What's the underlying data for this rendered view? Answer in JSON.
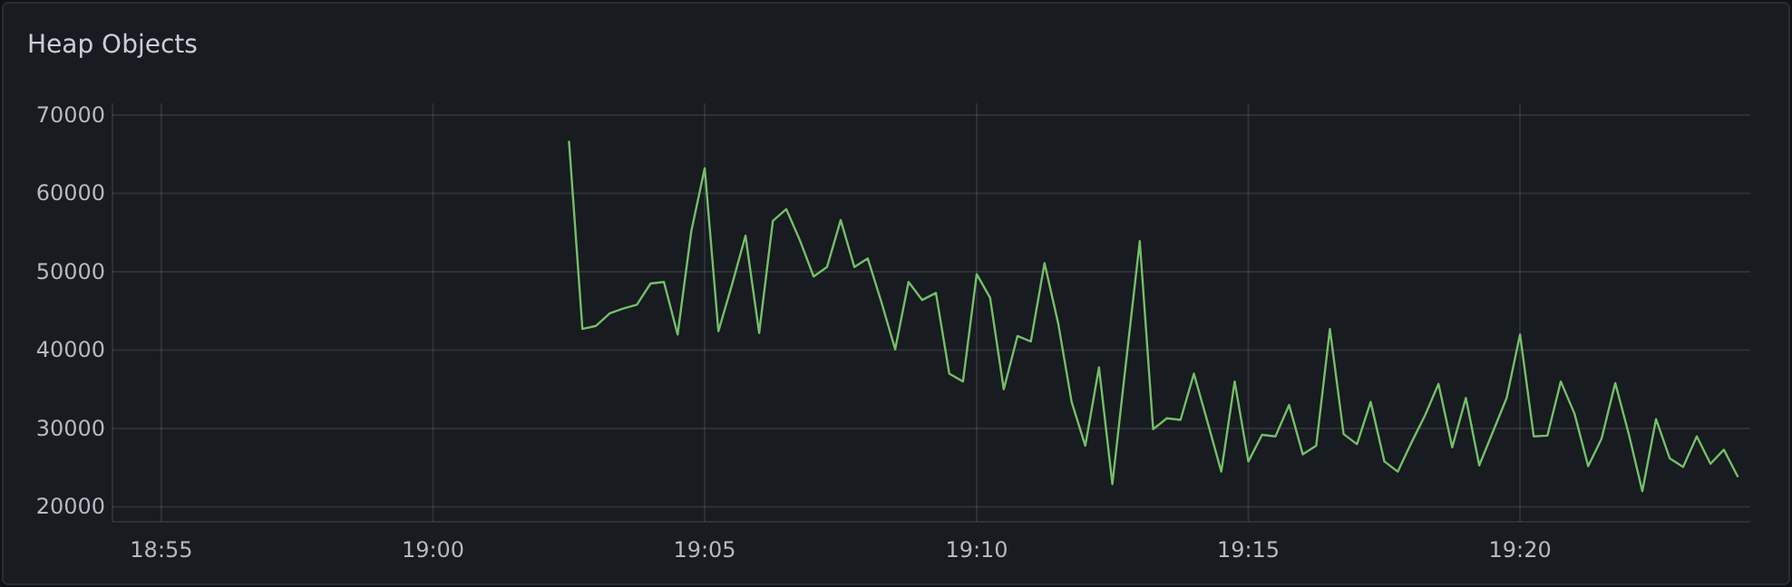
{
  "chart_data": {
    "type": "line",
    "title": "Heap Objects",
    "x": [
      19.0417,
      19.0458,
      19.05,
      19.0542,
      19.0583,
      19.0625,
      19.0667,
      19.0708,
      19.075,
      19.0792,
      19.0833,
      19.0875,
      19.0917,
      19.0958,
      19.1,
      19.1042,
      19.1083,
      19.1125,
      19.1167,
      19.1208,
      19.125,
      19.1292,
      19.1333,
      19.1375,
      19.1417,
      19.1458,
      19.15,
      19.1542,
      19.1583,
      19.1625,
      19.1667,
      19.1708,
      19.175,
      19.1792,
      19.1833,
      19.1875,
      19.1917,
      19.1958,
      19.2,
      19.2042,
      19.2083,
      19.2125,
      19.2167,
      19.2208,
      19.225,
      19.2292,
      19.2333,
      19.2375,
      19.2417,
      19.2458,
      19.25,
      19.2542,
      19.2583,
      19.2625,
      19.2667,
      19.2708,
      19.275,
      19.2792,
      19.2833,
      19.2875,
      19.2917,
      19.2958,
      19.3,
      19.3042,
      19.3083,
      19.3125,
      19.3167,
      19.3208,
      19.325,
      19.3292,
      19.3333,
      19.3375,
      19.3417,
      19.3458,
      19.35,
      19.3542,
      19.3583,
      19.3625,
      19.3667,
      19.3708,
      19.375,
      19.3792,
      19.3833,
      19.3875,
      19.3917,
      19.3958,
      19.4
    ],
    "series": [
      {
        "color": "#73bf69",
        "values": [
          66600,
          42700,
          43100,
          44700,
          45300,
          45800,
          48500,
          48700,
          42000,
          55200,
          63200,
          42400,
          48400,
          54600,
          42200,
          56500,
          58000,
          54000,
          49400,
          50600,
          56600,
          50600,
          51700,
          46100,
          40100,
          48700,
          46400,
          47300,
          37000,
          36000,
          49700,
          46700,
          35000,
          41800,
          41100,
          51100,
          43400,
          33400,
          27800,
          37800,
          22900,
          38500,
          53900,
          29900,
          31300,
          31100,
          37000,
          30800,
          24500,
          36000,
          25800,
          29200,
          29000,
          33000,
          26700,
          27800,
          42700,
          29300,
          28000,
          33400,
          25800,
          24500,
          28200,
          31700,
          35700,
          27600,
          33900,
          25300,
          29600,
          33900,
          42000,
          29000,
          29100,
          36000,
          31900,
          25200,
          28700,
          35800,
          29200,
          22000,
          31200,
          26200,
          25100,
          29000,
          25500,
          27300,
          23900
        ]
      }
    ],
    "xlim": [
      18.9017,
      19.4039
    ],
    "xticks": [
      {
        "value": 18.9167,
        "label": "18:55"
      },
      {
        "value": 19,
        "label": "19:00"
      },
      {
        "value": 19.0833,
        "label": "19:05"
      },
      {
        "value": 19.1667,
        "label": "19:10"
      },
      {
        "value": 19.25,
        "label": "19:15"
      },
      {
        "value": 19.3333,
        "label": "19:20"
      }
    ],
    "ylim": [
      18100,
      71500
    ],
    "yticks": [
      20000,
      30000,
      40000,
      50000,
      60000,
      70000
    ],
    "grid": true,
    "line_style": "solid",
    "marker": "none"
  }
}
